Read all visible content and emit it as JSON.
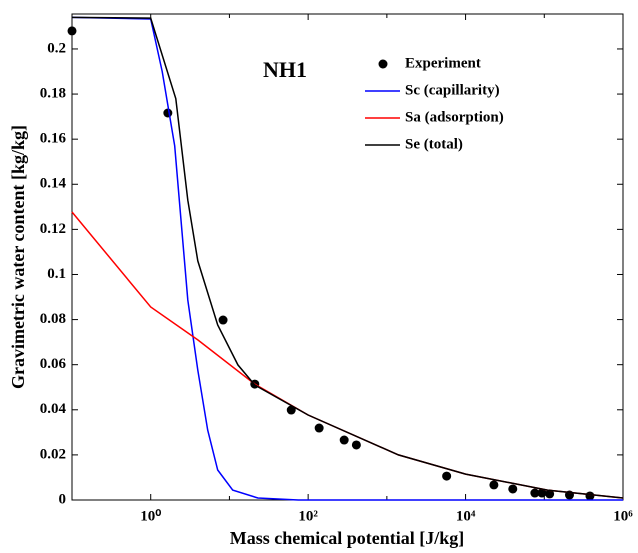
{
  "chart_data": {
    "type": "line",
    "title": "NH1",
    "xlabel": "Mass chemical potential [J/kg]",
    "ylabel": "Gravimetric water content [kg/kg]",
    "xscale": "log",
    "xlim": [
      0.1,
      1000000
    ],
    "xticks": [
      {
        "value": 1,
        "label": "10⁰"
      },
      {
        "value": 100,
        "label": "10²"
      },
      {
        "value": 10000,
        "label": "10⁴"
      },
      {
        "value": 1000000,
        "label": "10⁶"
      }
    ],
    "xminorticks": [
      0.1,
      10,
      1000,
      100000
    ],
    "ylim": [
      0,
      0.2155
    ],
    "yticks": [
      0,
      0.02,
      0.04,
      0.06,
      0.08,
      0.1,
      0.12,
      0.14,
      0.16,
      0.18,
      0.2
    ],
    "legend": "upper right",
    "series": [
      {
        "name": "Experiment",
        "color": "#000000",
        "type": "scatter",
        "x": [
          0.1,
          1.65,
          8.3,
          21,
          61,
          138,
          287,
          410,
          5750,
          22900,
          39800,
          75900,
          93300,
          117000,
          209000,
          380000
        ],
        "values": [
          0.208,
          0.1716,
          0.0798,
          0.0514,
          0.0399,
          0.0319,
          0.0266,
          0.0244,
          0.0106,
          0.0067,
          0.0049,
          0.0031,
          0.0031,
          0.0027,
          0.0022,
          0.0018
        ]
      },
      {
        "name": "Sc (capillarity)",
        "color": "#0000ff",
        "type": "line",
        "x": [
          0.1,
          1,
          1.4,
          2.02,
          2.96,
          3.97,
          5.3,
          7.1,
          11,
          23,
          75,
          1000000
        ],
        "values": [
          0.214,
          0.2133,
          0.19,
          0.157,
          0.0887,
          0.0576,
          0.031,
          0.0133,
          0.0044,
          0.0009,
          0,
          0
        ]
      },
      {
        "name": "Sa (adsorption)",
        "color": "#ff0000",
        "type": "line",
        "x": [
          0.1,
          1,
          3.97,
          21,
          100,
          1400,
          10000,
          110000,
          1000000
        ],
        "values": [
          0.1277,
          0.0856,
          0.071,
          0.0514,
          0.0377,
          0.02,
          0.0115,
          0.0044,
          0.0009
        ]
      },
      {
        "name": "Se (total)",
        "color": "#000000",
        "type": "line",
        "x": [
          0.1,
          1,
          2.08,
          2.96,
          3.97,
          7.1,
          12.8,
          21,
          100,
          1400,
          10000,
          110000,
          1000000
        ],
        "values": [
          0.214,
          0.2137,
          0.178,
          0.133,
          0.106,
          0.0776,
          0.0599,
          0.051,
          0.0377,
          0.02,
          0.0115,
          0.0044,
          0.0009
        ]
      }
    ]
  }
}
